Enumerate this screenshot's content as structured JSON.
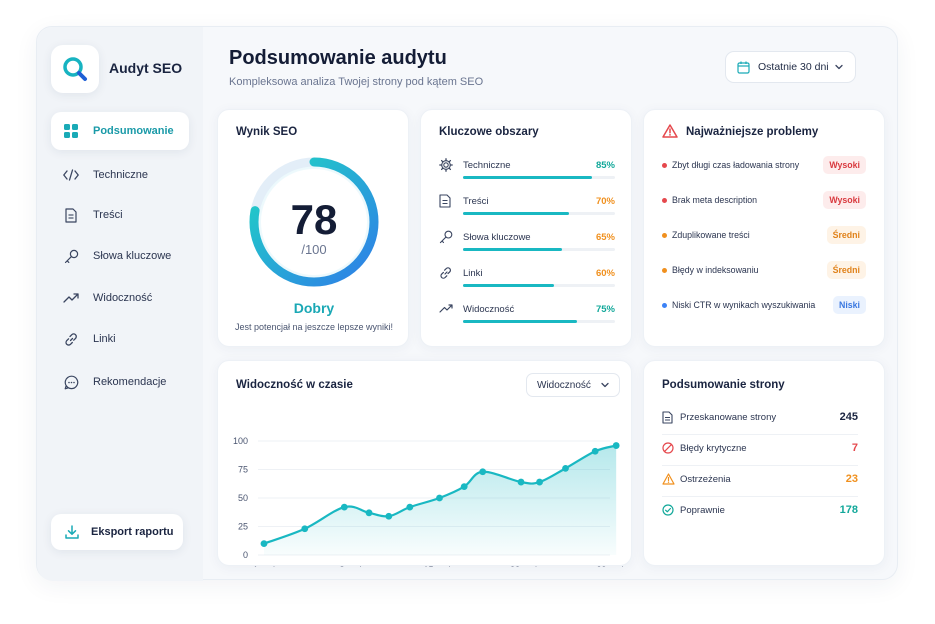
{
  "app": {
    "name": "Audyt SEO"
  },
  "sidebar": {
    "items": [
      {
        "label": "Podsumowanie",
        "icon": "grid-icon",
        "active": true
      },
      {
        "label": "Techniczne",
        "icon": "code-icon"
      },
      {
        "label": "Treści",
        "icon": "document-icon"
      },
      {
        "label": "Słowa kluczowe",
        "icon": "key-icon"
      },
      {
        "label": "Widoczność",
        "icon": "trend-icon"
      },
      {
        "label": "Linki",
        "icon": "link-icon"
      },
      {
        "label": "Rekomendacje",
        "icon": "chat-icon"
      }
    ],
    "export_label": "Eksport raportu"
  },
  "header": {
    "title": "Podsumowanie audytu",
    "subtitle": "Kompleksowa analiza Twojej strony pod kątem SEO",
    "date_range": "Ostatnie 30 dni"
  },
  "score": {
    "title": "Wynik SEO",
    "value": "78",
    "max": "/100",
    "fraction": 0.78,
    "label": "Dobry",
    "note": "Jest potencjał na jeszcze lepsze wyniki!"
  },
  "areas": {
    "title": "Kluczowe obszary",
    "items": [
      {
        "name": "Techniczne",
        "pct": "85%",
        "value": 0.85,
        "color": "#12a89a",
        "icon": "gear-icon"
      },
      {
        "name": "Treści",
        "pct": "70%",
        "value": 0.7,
        "color": "#f0901e",
        "icon": "document-icon"
      },
      {
        "name": "Słowa kluczowe",
        "pct": "65%",
        "value": 0.65,
        "color": "#f0901e",
        "icon": "key-icon"
      },
      {
        "name": "Linki",
        "pct": "60%",
        "value": 0.6,
        "color": "#f0901e",
        "icon": "link-icon"
      },
      {
        "name": "Widoczność",
        "pct": "75%",
        "value": 0.75,
        "color": "#12a89a",
        "icon": "trend-icon"
      }
    ]
  },
  "problems": {
    "title": "Najważniejsze problemy",
    "items": [
      {
        "text": "Zbyt długi czas ładowania strony",
        "badge": "Wysoki",
        "dot": "#e5484d",
        "badge_bg": "#fdecec",
        "badge_fg": "#d93a3f"
      },
      {
        "text": "Brak meta description",
        "badge": "Wysoki",
        "dot": "#e5484d",
        "badge_bg": "#fdecec",
        "badge_fg": "#d93a3f"
      },
      {
        "text": "Zduplikowane treści",
        "badge": "Średni",
        "dot": "#f0901e",
        "badge_bg": "#fef3e6",
        "badge_fg": "#e0821a"
      },
      {
        "text": "Błędy w indeksowaniu",
        "badge": "Średni",
        "dot": "#f0901e",
        "badge_bg": "#fef3e6",
        "badge_fg": "#e0821a"
      },
      {
        "text": "Niski CTR w wynikach wyszukiwania",
        "badge": "Niski",
        "dot": "#3b82f6",
        "badge_bg": "#eaf2fe",
        "badge_fg": "#3a78e0"
      }
    ]
  },
  "visibility": {
    "title": "Widoczność w czasie",
    "select_value": "Widoczność"
  },
  "chart_data": {
    "type": "area",
    "title": "Widoczność w czasie",
    "x_tick_labels": [
      "1 maj",
      "8 maj",
      "15 maj",
      "22 maj",
      "29 maj"
    ],
    "x_ticks": [
      1,
      8,
      15,
      22,
      29
    ],
    "y_ticks": [
      "0",
      "25",
      "50",
      "75",
      "100"
    ],
    "ylim": [
      0,
      100
    ],
    "xlim": [
      1,
      29
    ],
    "series": [
      {
        "x": [
          1,
          4.3,
          7.5,
          9.5,
          11.1,
          12.8,
          15.2,
          17.2,
          18.7,
          21.8,
          23.3,
          25.4,
          27.8,
          29.5
        ],
        "values": [
          10,
          23,
          42,
          37,
          34,
          42,
          50,
          60,
          73,
          64,
          64,
          76,
          91,
          96
        ]
      }
    ],
    "grid": true,
    "color": "#19b8c2"
  },
  "summary": {
    "title": "Podsumowanie strony",
    "items": [
      {
        "label": "Przeskanowane strony",
        "value": "245",
        "color": "#1a2440",
        "icon": "document-icon"
      },
      {
        "label": "Błędy krytyczne",
        "value": "7",
        "color": "#e5484d",
        "icon": "block-icon"
      },
      {
        "label": "Ostrzeżenia",
        "value": "23",
        "color": "#f0901e",
        "icon": "warning-icon"
      },
      {
        "label": "Poprawnie",
        "value": "178",
        "color": "#12a89a",
        "icon": "check-circle-icon"
      }
    ]
  }
}
